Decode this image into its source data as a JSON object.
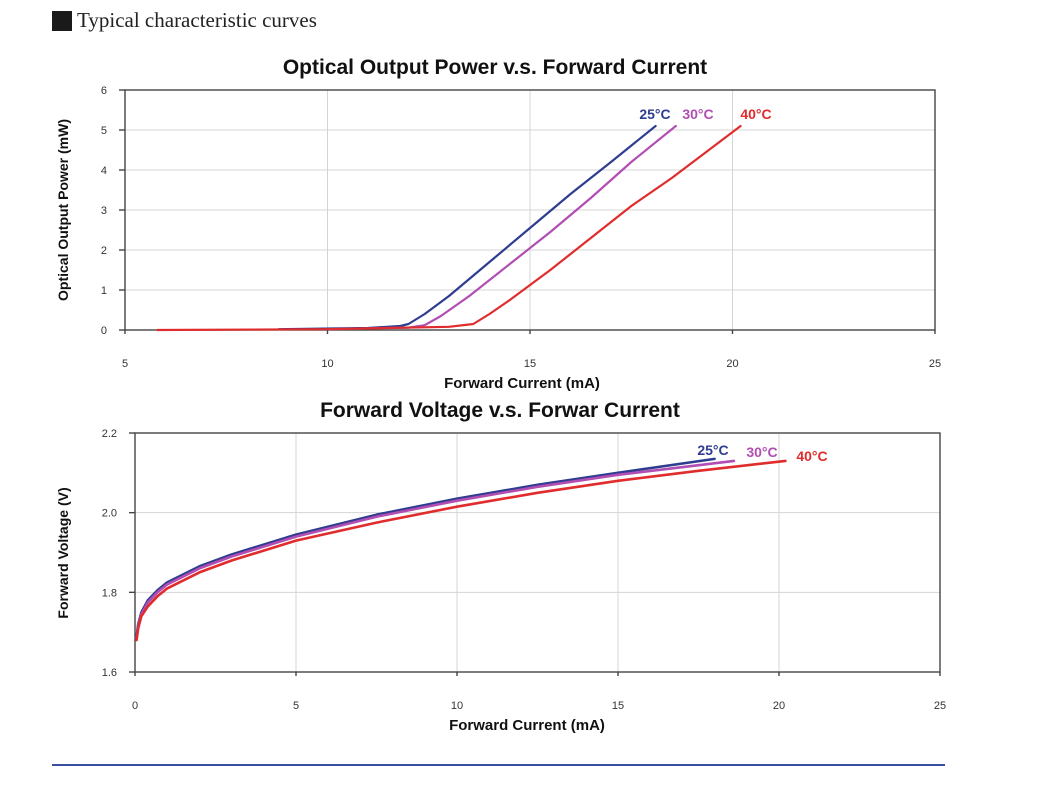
{
  "section_heading": "Typical characteristic curves",
  "colors": {
    "25C": "#2e3d8f",
    "30C": "#b24db3",
    "40C": "#e02c2c"
  },
  "chart_data": [
    {
      "type": "line",
      "title": "Optical Output Power v.s. Forward Current",
      "xlabel": "Forward Current (mA)",
      "ylabel": "Optical Output Power (mW)",
      "xlim": [
        5,
        25
      ],
      "ylim": [
        0,
        6
      ],
      "xticks": [
        "5",
        "10",
        "15",
        "20",
        "25"
      ],
      "yticks": [
        "0",
        "1",
        "2",
        "3",
        "4",
        "5",
        "6"
      ],
      "grid": true,
      "series": [
        {
          "name": "25°C",
          "color": "#2e3d8f",
          "x": [
            8.8,
            11.0,
            11.8,
            12.0,
            12.4,
            13.0,
            14.0,
            15.0,
            16.0,
            17.0,
            18.1
          ],
          "y": [
            0.02,
            0.05,
            0.1,
            0.15,
            0.4,
            0.85,
            1.7,
            2.55,
            3.4,
            4.2,
            5.1
          ]
        },
        {
          "name": "30°C",
          "color": "#b24db3",
          "x": [
            10.0,
            12.0,
            12.4,
            12.8,
            13.5,
            14.5,
            15.5,
            16.5,
            17.5,
            18.6
          ],
          "y": [
            0.02,
            0.06,
            0.12,
            0.35,
            0.85,
            1.65,
            2.45,
            3.3,
            4.2,
            5.1
          ]
        },
        {
          "name": "40°C",
          "color": "#e02c2c",
          "x": [
            5.8,
            10.0,
            13.0,
            13.6,
            14.0,
            14.5,
            15.5,
            16.5,
            17.5,
            18.5,
            20.2
          ],
          "y": [
            0.0,
            0.02,
            0.08,
            0.15,
            0.4,
            0.75,
            1.5,
            2.3,
            3.1,
            3.8,
            5.1
          ]
        }
      ]
    },
    {
      "type": "line",
      "title": "Forward Voltage v.s. Forwar Current",
      "xlabel": "Forward Current (mA)",
      "ylabel": "Forward Voltage (V)",
      "xlim": [
        0,
        25
      ],
      "ylim": [
        1.6,
        2.2
      ],
      "xticks": [
        "0",
        "5",
        "10",
        "15",
        "20",
        "25"
      ],
      "yticks": [
        "1.6",
        "1.8",
        "2.0",
        "2.2"
      ],
      "grid": true,
      "series": [
        {
          "name": "25°C",
          "color": "#2e3d8f",
          "x": [
            0.05,
            0.1,
            0.2,
            0.4,
            0.7,
            1.0,
            2.0,
            3.0,
            5.0,
            7.5,
            10.0,
            12.5,
            15.0,
            18.0
          ],
          "y": [
            1.69,
            1.72,
            1.75,
            1.78,
            1.805,
            1.825,
            1.865,
            1.895,
            1.945,
            1.995,
            2.035,
            2.07,
            2.1,
            2.135
          ]
        },
        {
          "name": "30°C",
          "color": "#b24db3",
          "x": [
            0.05,
            0.1,
            0.2,
            0.4,
            0.7,
            1.0,
            2.0,
            3.0,
            5.0,
            7.5,
            10.0,
            12.5,
            15.0,
            18.6
          ],
          "y": [
            1.685,
            1.715,
            1.745,
            1.775,
            1.8,
            1.82,
            1.86,
            1.89,
            1.94,
            1.99,
            2.03,
            2.065,
            2.095,
            2.13
          ]
        },
        {
          "name": "40°C",
          "color": "#e02c2c",
          "x": [
            0.05,
            0.1,
            0.2,
            0.4,
            0.7,
            1.0,
            2.0,
            3.0,
            5.0,
            7.5,
            10.0,
            12.5,
            15.0,
            17.5,
            20.2
          ],
          "y": [
            1.68,
            1.71,
            1.74,
            1.765,
            1.79,
            1.81,
            1.85,
            1.88,
            1.93,
            1.975,
            2.015,
            2.05,
            2.08,
            2.105,
            2.13
          ]
        }
      ]
    }
  ]
}
